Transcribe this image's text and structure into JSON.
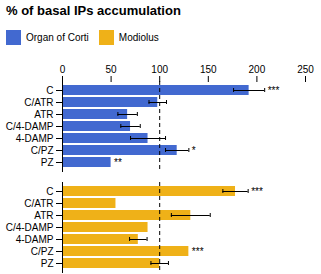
{
  "chart_data": {
    "type": "bar",
    "orientation": "horizontal",
    "title": "% of basal IPs accumulation",
    "categories": [
      "C",
      "C/ATR",
      "ATR",
      "C/4-DAMP",
      "4-DAMP",
      "C/PZ",
      "PZ"
    ],
    "series": [
      {
        "name": "Organ of Corti",
        "values": [
          192,
          98,
          67,
          70,
          88,
          118,
          50
        ],
        "errors": [
          16,
          9,
          10,
          10,
          18,
          12,
          0
        ],
        "significance": [
          "***",
          null,
          null,
          null,
          null,
          "*",
          "**"
        ]
      },
      {
        "name": "Modiolus",
        "values": [
          178,
          55,
          132,
          88,
          78,
          130,
          100
        ],
        "errors": [
          13,
          0,
          20,
          0,
          9,
          0,
          9
        ],
        "significance": [
          "***",
          null,
          null,
          null,
          null,
          "***",
          null
        ]
      }
    ],
    "xlim": [
      0,
      250
    ],
    "xticks": [
      0,
      50,
      100,
      150,
      200,
      250
    ],
    "reference_line_x": 100
  }
}
